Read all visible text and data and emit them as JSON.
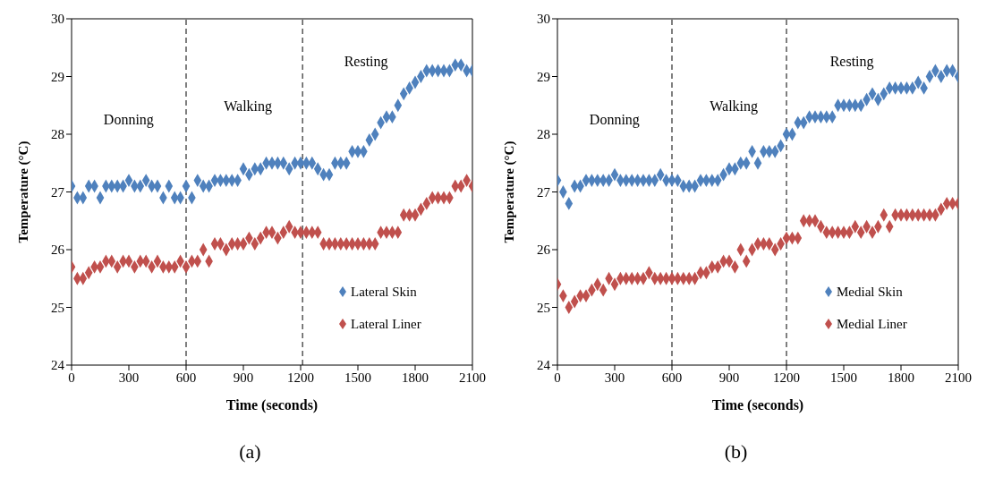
{
  "chart_data": [
    {
      "type": "scatter",
      "xlabel": "Time (seconds)",
      "ylabel": "Temperature  (°C)",
      "xlim": [
        0,
        2100
      ],
      "xticks": [
        0,
        300,
        600,
        900,
        1200,
        1500,
        1800,
        2100
      ],
      "ylim": [
        24,
        30
      ],
      "yticks": [
        24,
        25,
        26,
        27,
        28,
        29,
        30
      ],
      "marker": "diamond",
      "legend": "bottom right",
      "grid": false,
      "ref_lines": [
        {
          "axis": "x",
          "value": 600,
          "line_style": "dashed",
          "color": "#000000"
        },
        {
          "axis": "x",
          "value": 1210,
          "line_style": "dashed",
          "color": "#000000"
        }
      ],
      "annotations": [
        "Donning",
        "Walking",
        "Resting",
        "(a)"
      ],
      "series": [
        {
          "name": "Lateral Skin",
          "color": "#4f81bd",
          "x": [
            0,
            30,
            60,
            90,
            120,
            150,
            180,
            210,
            240,
            270,
            300,
            330,
            360,
            390,
            420,
            450,
            480,
            510,
            540,
            570,
            600,
            630,
            660,
            690,
            720,
            750,
            780,
            810,
            840,
            870,
            900,
            930,
            960,
            990,
            1020,
            1050,
            1080,
            1110,
            1140,
            1170,
            1200,
            1230,
            1260,
            1290,
            1320,
            1350,
            1380,
            1410,
            1440,
            1470,
            1500,
            1530,
            1560,
            1590,
            1620,
            1650,
            1680,
            1710,
            1740,
            1770,
            1800,
            1830,
            1860,
            1890,
            1920,
            1950,
            1980,
            2010,
            2040,
            2070,
            2100
          ],
          "values": [
            27.1,
            26.9,
            26.9,
            27.1,
            27.1,
            26.9,
            27.1,
            27.1,
            27.1,
            27.1,
            27.2,
            27.1,
            27.1,
            27.2,
            27.1,
            27.1,
            26.9,
            27.1,
            26.9,
            26.9,
            27.1,
            26.9,
            27.2,
            27.1,
            27.1,
            27.2,
            27.2,
            27.2,
            27.2,
            27.2,
            27.4,
            27.3,
            27.4,
            27.4,
            27.5,
            27.5,
            27.5,
            27.5,
            27.4,
            27.5,
            27.5,
            27.5,
            27.5,
            27.4,
            27.3,
            27.3,
            27.5,
            27.5,
            27.5,
            27.7,
            27.7,
            27.7,
            27.9,
            28.0,
            28.2,
            28.3,
            28.3,
            28.5,
            28.7,
            28.8,
            28.9,
            29.0,
            29.1,
            29.1,
            29.1,
            29.1,
            29.1,
            29.2,
            29.2,
            29.1,
            29.1
          ]
        },
        {
          "name": "Lateral Liner",
          "color": "#c0504d",
          "x": [
            0,
            30,
            60,
            90,
            120,
            150,
            180,
            210,
            240,
            270,
            300,
            330,
            360,
            390,
            420,
            450,
            480,
            510,
            540,
            570,
            600,
            630,
            660,
            690,
            720,
            750,
            780,
            810,
            840,
            870,
            900,
            930,
            960,
            990,
            1020,
            1050,
            1080,
            1110,
            1140,
            1170,
            1200,
            1230,
            1260,
            1290,
            1320,
            1350,
            1380,
            1410,
            1440,
            1470,
            1500,
            1530,
            1560,
            1590,
            1620,
            1650,
            1680,
            1710,
            1740,
            1770,
            1800,
            1830,
            1860,
            1890,
            1920,
            1950,
            1980,
            2010,
            2040,
            2070,
            2100
          ],
          "values": [
            25.7,
            25.5,
            25.5,
            25.6,
            25.7,
            25.7,
            25.8,
            25.8,
            25.7,
            25.8,
            25.8,
            25.7,
            25.8,
            25.8,
            25.7,
            25.8,
            25.7,
            25.7,
            25.7,
            25.8,
            25.7,
            25.8,
            25.8,
            26.0,
            25.8,
            26.1,
            26.1,
            26.0,
            26.1,
            26.1,
            26.1,
            26.2,
            26.1,
            26.2,
            26.3,
            26.3,
            26.2,
            26.3,
            26.4,
            26.3,
            26.3,
            26.3,
            26.3,
            26.3,
            26.1,
            26.1,
            26.1,
            26.1,
            26.1,
            26.1,
            26.1,
            26.1,
            26.1,
            26.1,
            26.3,
            26.3,
            26.3,
            26.3,
            26.6,
            26.6,
            26.6,
            26.7,
            26.8,
            26.9,
            26.9,
            26.9,
            26.9,
            27.1,
            27.1,
            27.2,
            27.1
          ]
        }
      ]
    },
    {
      "type": "scatter",
      "xlabel": "Time (seconds)",
      "ylabel": "Temperature  (°C)",
      "xlim": [
        0,
        2100
      ],
      "xticks": [
        0,
        300,
        600,
        900,
        1200,
        1500,
        1800,
        2100
      ],
      "ylim": [
        24,
        30
      ],
      "yticks": [
        24,
        25,
        26,
        27,
        28,
        29,
        30
      ],
      "marker": "diamond",
      "legend": "bottom right",
      "grid": false,
      "ref_lines": [
        {
          "axis": "x",
          "value": 600,
          "line_style": "dashed",
          "color": "#000000"
        },
        {
          "axis": "x",
          "value": 1200,
          "line_style": "dashed",
          "color": "#000000"
        }
      ],
      "annotations": [
        "Donning",
        "Walking",
        "Resting",
        "(b)"
      ],
      "series": [
        {
          "name": "Medial Skin",
          "color": "#4f81bd",
          "x": [
            0,
            30,
            60,
            90,
            120,
            150,
            180,
            210,
            240,
            270,
            300,
            330,
            360,
            390,
            420,
            450,
            480,
            510,
            540,
            570,
            600,
            630,
            660,
            690,
            720,
            750,
            780,
            810,
            840,
            870,
            900,
            930,
            960,
            990,
            1020,
            1050,
            1080,
            1110,
            1140,
            1170,
            1200,
            1230,
            1260,
            1290,
            1320,
            1350,
            1380,
            1410,
            1440,
            1470,
            1500,
            1530,
            1560,
            1590,
            1620,
            1650,
            1680,
            1710,
            1740,
            1770,
            1800,
            1830,
            1860,
            1890,
            1920,
            1950,
            1980,
            2010,
            2040,
            2070,
            2100
          ],
          "values": [
            27.2,
            27.0,
            26.8,
            27.1,
            27.1,
            27.2,
            27.2,
            27.2,
            27.2,
            27.2,
            27.3,
            27.2,
            27.2,
            27.2,
            27.2,
            27.2,
            27.2,
            27.2,
            27.3,
            27.2,
            27.2,
            27.2,
            27.1,
            27.1,
            27.1,
            27.2,
            27.2,
            27.2,
            27.2,
            27.3,
            27.4,
            27.4,
            27.5,
            27.5,
            27.7,
            27.5,
            27.7,
            27.7,
            27.7,
            27.8,
            28.0,
            28.0,
            28.2,
            28.2,
            28.3,
            28.3,
            28.3,
            28.3,
            28.3,
            28.5,
            28.5,
            28.5,
            28.5,
            28.5,
            28.6,
            28.7,
            28.6,
            28.7,
            28.8,
            28.8,
            28.8,
            28.8,
            28.8,
            28.9,
            28.8,
            29.0,
            29.1,
            29.0,
            29.1,
            29.1,
            29.0
          ]
        },
        {
          "name": "Medial Liner",
          "color": "#c0504d",
          "x": [
            0,
            30,
            60,
            90,
            120,
            150,
            180,
            210,
            240,
            270,
            300,
            330,
            360,
            390,
            420,
            450,
            480,
            510,
            540,
            570,
            600,
            630,
            660,
            690,
            720,
            750,
            780,
            810,
            840,
            870,
            900,
            930,
            960,
            990,
            1020,
            1050,
            1080,
            1110,
            1140,
            1170,
            1200,
            1230,
            1260,
            1290,
            1320,
            1350,
            1380,
            1410,
            1440,
            1470,
            1500,
            1530,
            1560,
            1590,
            1620,
            1650,
            1680,
            1710,
            1740,
            1770,
            1800,
            1830,
            1860,
            1890,
            1920,
            1950,
            1980,
            2010,
            2040,
            2070,
            2100
          ],
          "values": [
            25.4,
            25.2,
            25.0,
            25.1,
            25.2,
            25.2,
            25.3,
            25.4,
            25.3,
            25.5,
            25.4,
            25.5,
            25.5,
            25.5,
            25.5,
            25.5,
            25.6,
            25.5,
            25.5,
            25.5,
            25.5,
            25.5,
            25.5,
            25.5,
            25.5,
            25.6,
            25.6,
            25.7,
            25.7,
            25.8,
            25.8,
            25.7,
            26.0,
            25.8,
            26.0,
            26.1,
            26.1,
            26.1,
            26.0,
            26.1,
            26.2,
            26.2,
            26.2,
            26.5,
            26.5,
            26.5,
            26.4,
            26.3,
            26.3,
            26.3,
            26.3,
            26.3,
            26.4,
            26.3,
            26.4,
            26.3,
            26.4,
            26.6,
            26.4,
            26.6,
            26.6,
            26.6,
            26.6,
            26.6,
            26.6,
            26.6,
            26.6,
            26.7,
            26.8,
            26.8,
            26.8
          ]
        }
      ]
    }
  ]
}
